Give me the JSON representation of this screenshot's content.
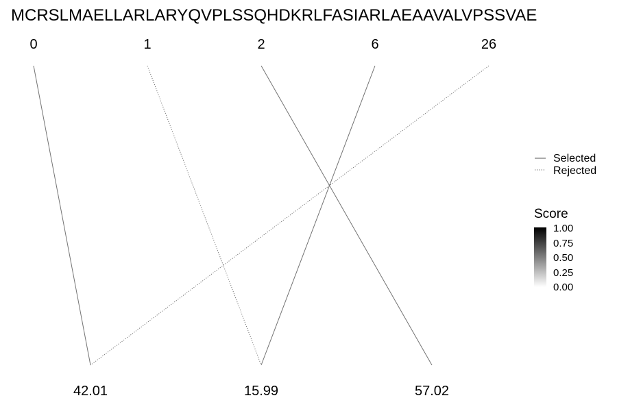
{
  "sequence": "MCRSLMAELLARLARYQVPLSSQHDKRLFASIARLAEAAVALVPSSVAE",
  "top_nodes": [
    "0",
    "1",
    "2",
    "6",
    "26"
  ],
  "bottom_nodes": [
    "42.01",
    "15.99",
    "57.02"
  ],
  "links": [
    {
      "from": 0,
      "to": 0,
      "status": "Selected",
      "score": 0.55
    },
    {
      "from": 1,
      "to": 1,
      "status": "Rejected",
      "score": 0.55
    },
    {
      "from": 2,
      "to": 2,
      "status": "Selected",
      "score": 0.55
    },
    {
      "from": 3,
      "to": 1,
      "status": "Selected",
      "score": 0.55
    },
    {
      "from": 4,
      "to": 0,
      "status": "Rejected",
      "score": 0.55
    }
  ],
  "legend": {
    "linetype_labels": [
      "Selected",
      "Rejected"
    ],
    "score_title": "Score",
    "score_ticks": [
      "1.00",
      "0.75",
      "0.50",
      "0.25",
      "0.00"
    ]
  },
  "colors": {
    "high": "#000000",
    "low": "#ffffff"
  }
}
